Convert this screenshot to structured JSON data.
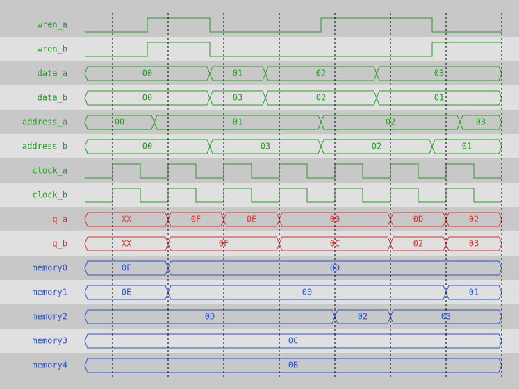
{
  "signals": [
    {
      "name": "wren_a"
    },
    {
      "name": "wren_b"
    },
    {
      "name": "data_a",
      "values": [
        "00",
        "01",
        "02",
        "03"
      ]
    },
    {
      "name": "data_b",
      "values": [
        "00",
        "03",
        "02",
        "01"
      ]
    },
    {
      "name": "address_a",
      "values": [
        "00",
        "01",
        "02",
        "03"
      ]
    },
    {
      "name": "address_b",
      "values": [
        "00",
        "03",
        "02",
        "01"
      ]
    },
    {
      "name": "clock_a"
    },
    {
      "name": "clock_b"
    },
    {
      "name": "q_a",
      "values": [
        "XX",
        "0F",
        "0E",
        "00",
        "0D",
        "02"
      ]
    },
    {
      "name": "q_b",
      "values": [
        "XX",
        "0F",
        "0C",
        "02",
        "03"
      ]
    },
    {
      "name": "memory0",
      "values": [
        "0F",
        "00"
      ]
    },
    {
      "name": "memory1",
      "values": [
        "0E",
        "00",
        "01"
      ]
    },
    {
      "name": "memory2",
      "values": [
        "0D",
        "02",
        "03"
      ]
    },
    {
      "name": "memory3",
      "values": [
        "0C"
      ]
    },
    {
      "name": "memory4",
      "values": [
        "0B"
      ]
    }
  ]
}
